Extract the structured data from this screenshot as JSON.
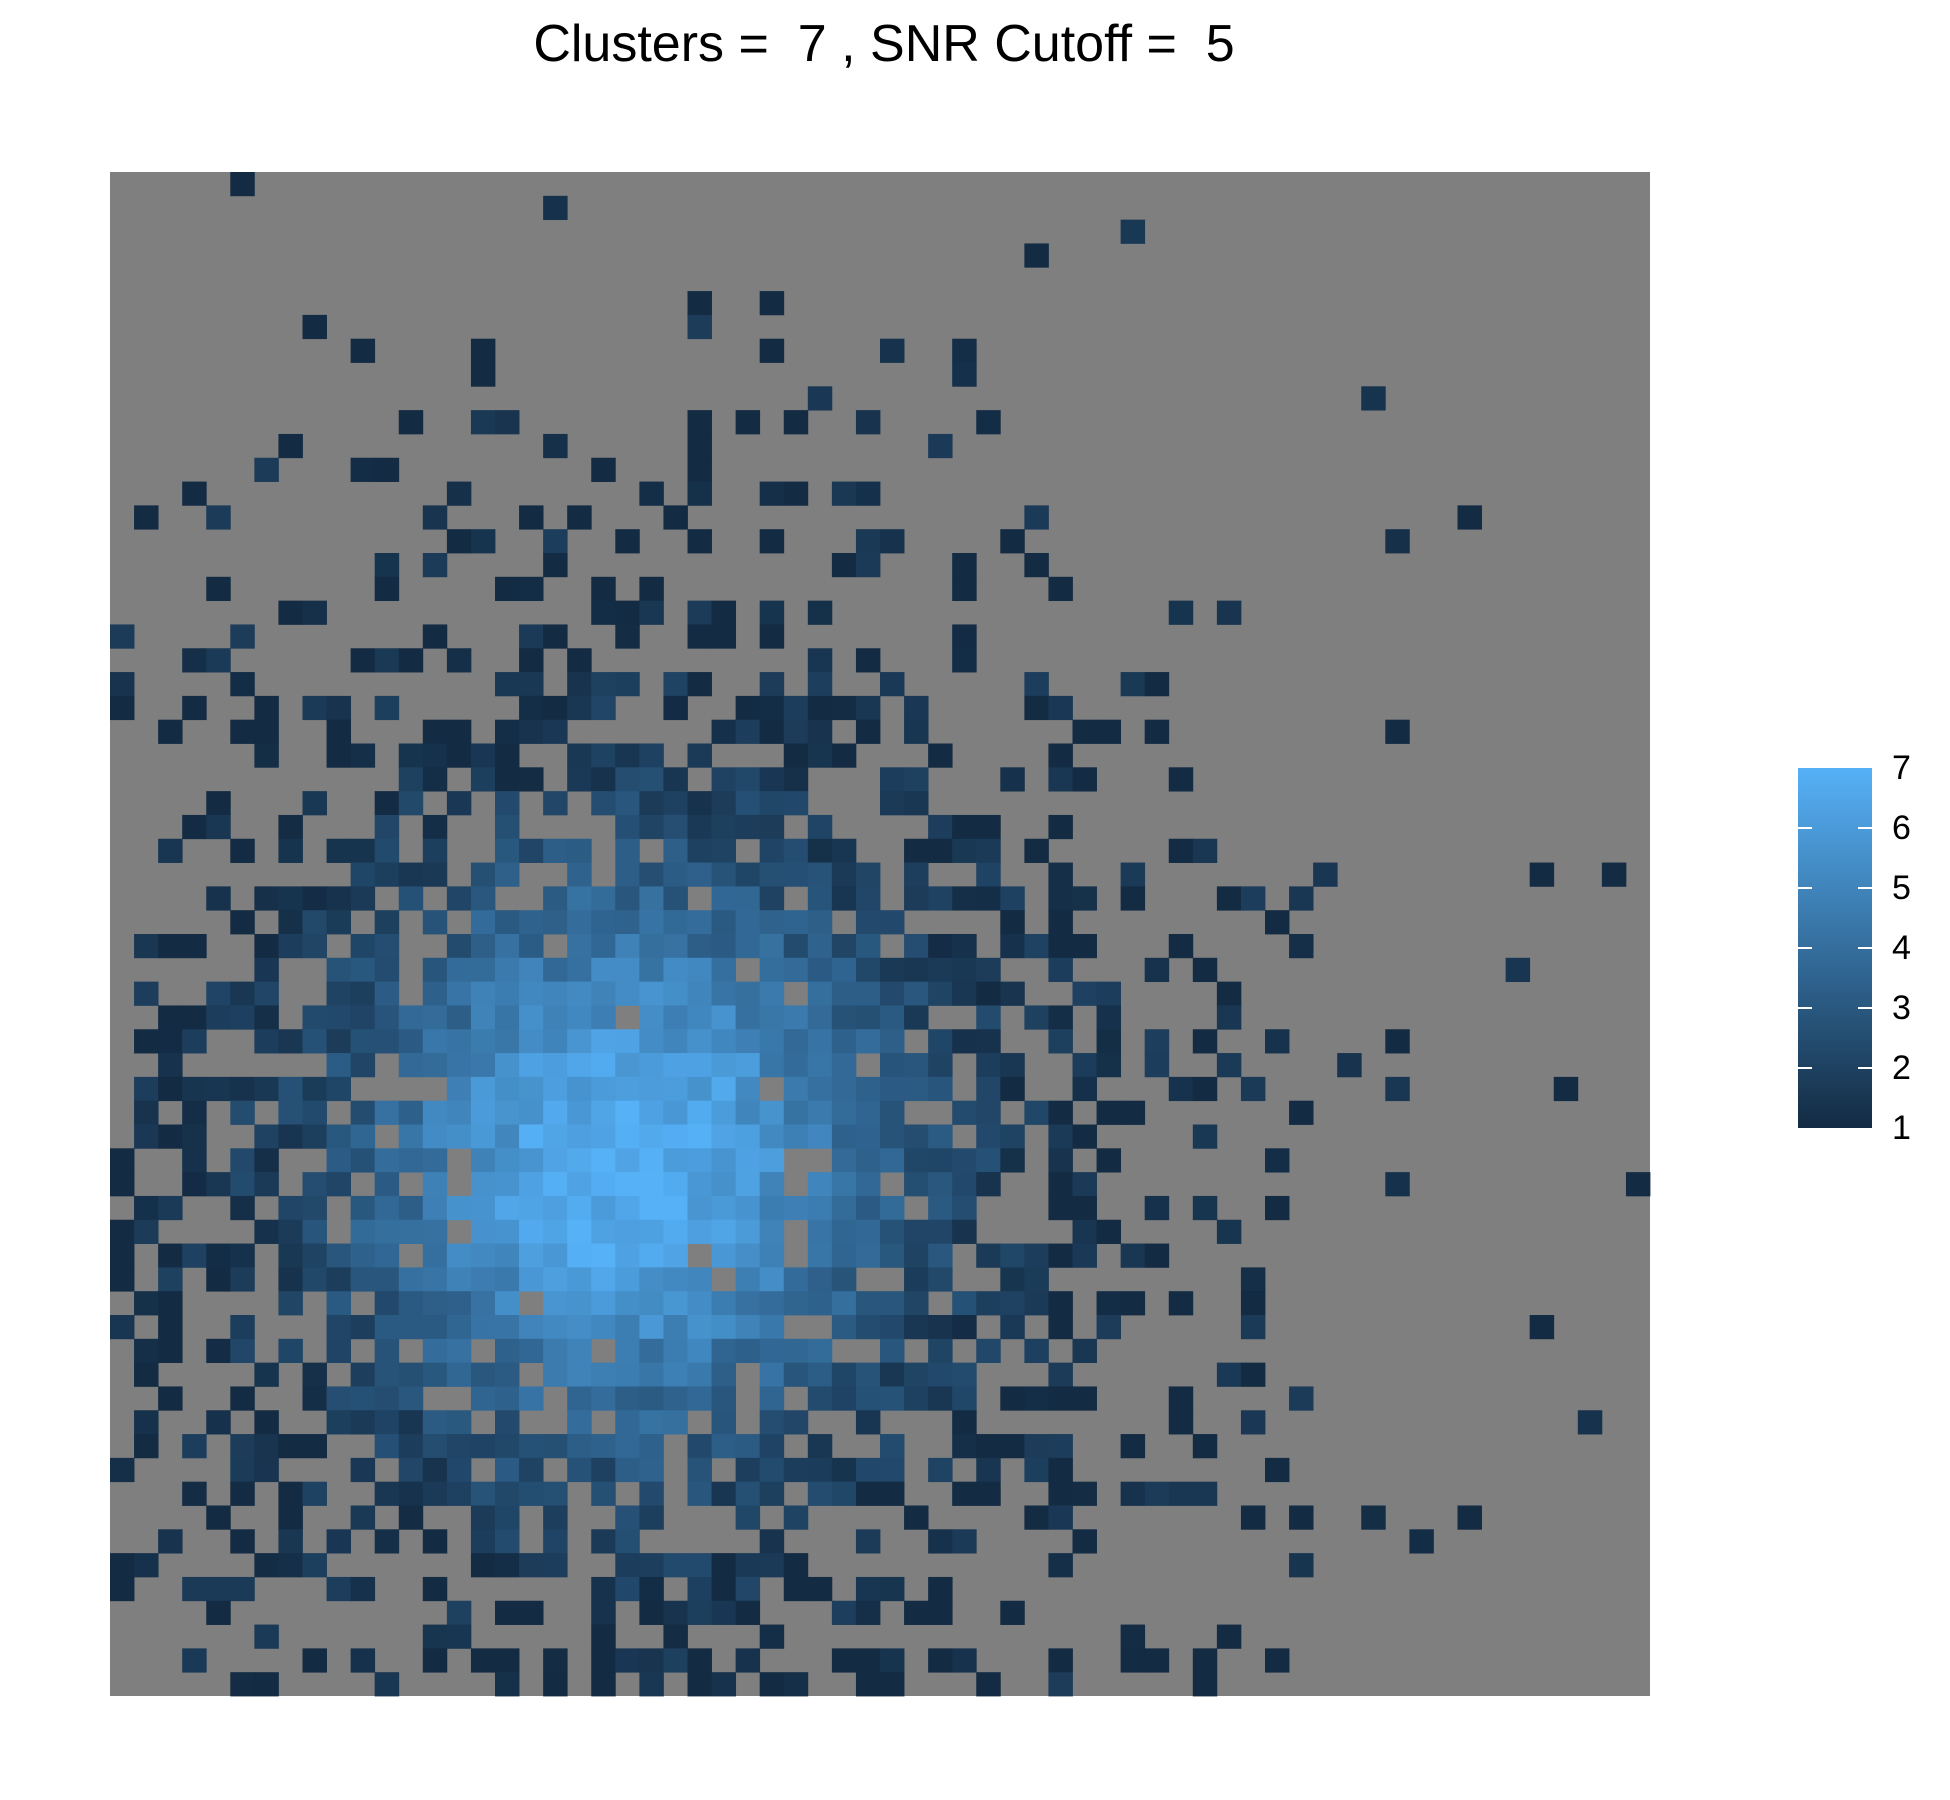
{
  "chart_data": {
    "type": "heatmap",
    "title": "Clusters =  7 , SNR Cutoff =  5",
    "grid_size": [
      64,
      64
    ],
    "legend": {
      "position": "right",
      "min": 1,
      "max": 7,
      "ticks": [
        "1",
        "2",
        "3",
        "4",
        "5",
        "6",
        "7"
      ]
    },
    "colors": {
      "background": "#7f7f7f",
      "low": "#132b43",
      "high": "#56b1f7"
    },
    "value_range": [
      1,
      7
    ],
    "center": [
      21,
      41
    ],
    "spread": 11,
    "seed": 7
  }
}
